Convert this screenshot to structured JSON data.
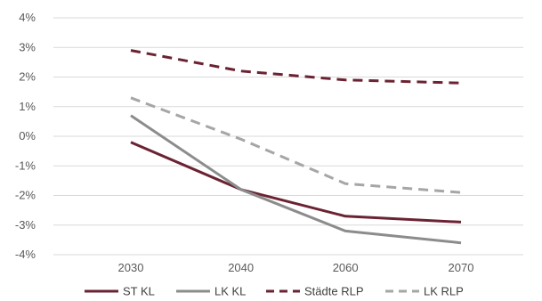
{
  "chart_data": {
    "type": "line",
    "categories": [
      "2030",
      "2040",
      "2060",
      "2070"
    ],
    "x_positions": [
      0,
      1,
      1.95,
      3
    ],
    "ylim": [
      -4,
      4
    ],
    "yticks": [
      -4,
      -3,
      -2,
      -1,
      0,
      1,
      2,
      3,
      4
    ],
    "ytick_labels": [
      "-4%",
      "-3%",
      "-2%",
      "-1%",
      "0%",
      "1%",
      "2%",
      "3%",
      "4%"
    ],
    "grid": "horizontal",
    "legend_position": "bottom",
    "series": [
      {
        "name": "ST KL",
        "values": [
          -0.2,
          -1.8,
          -2.7,
          -2.9
        ],
        "color": "#6b2333",
        "dash": "solid"
      },
      {
        "name": "LK KL",
        "values": [
          0.7,
          -1.8,
          -3.2,
          -3.6
        ],
        "color": "#8c8c8c",
        "dash": "solid"
      },
      {
        "name": "Städte RLP",
        "values": [
          2.9,
          2.2,
          1.9,
          1.8
        ],
        "color": "#6b2333",
        "dash": "dashed"
      },
      {
        "name": "LK RLP",
        "values": [
          1.3,
          -0.1,
          -1.6,
          -1.9
        ],
        "color": "#a6a6a6",
        "dash": "dashed"
      }
    ]
  }
}
